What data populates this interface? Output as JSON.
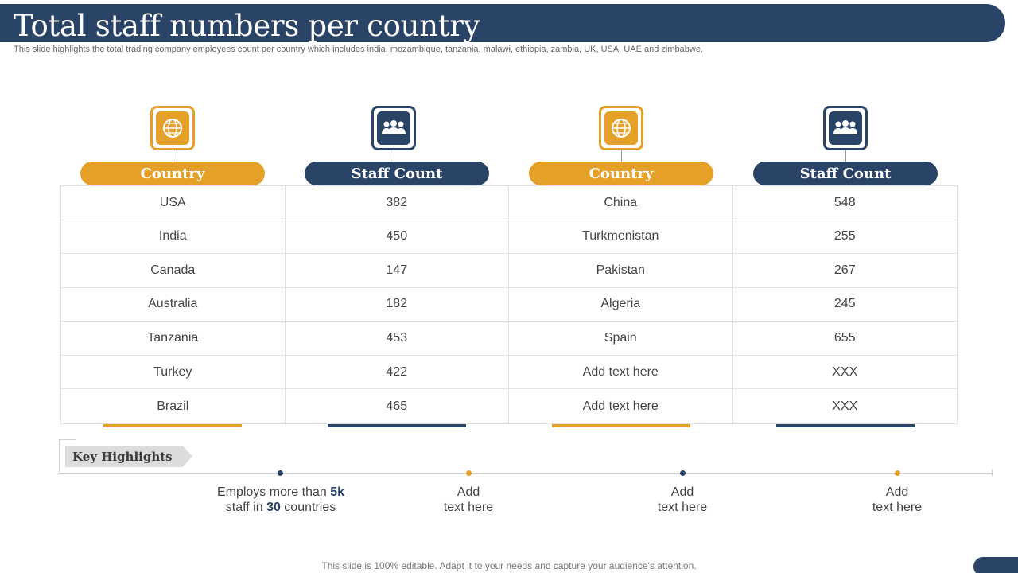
{
  "title": "Total staff numbers per country",
  "subtitle": "This slide highlights the total trading company employees count per country which includes india, mozambique, tanzania, malawi, ethiopia, zambia, UK, USA,  UAE and zimbabwe.",
  "colors": {
    "navy": "#2a4468",
    "gold": "#e4a027"
  },
  "columns": [
    {
      "header": "Country",
      "icon": "globe-icon"
    },
    {
      "header": "Staff Count",
      "icon": "team-icon"
    },
    {
      "header": "Country",
      "icon": "globe-icon"
    },
    {
      "header": "Staff Count",
      "icon": "team-icon"
    }
  ],
  "rows": [
    [
      "USA",
      "382",
      "China",
      "548"
    ],
    [
      "India",
      "450",
      "Turkmenistan",
      "255"
    ],
    [
      "Canada",
      "147",
      "Pakistan",
      "267"
    ],
    [
      "Australia",
      "182",
      "Algeria",
      "245"
    ],
    [
      "Tanzania",
      "453",
      "Spain",
      "655"
    ],
    [
      "Turkey",
      "422",
      "Add text here",
      "XXX"
    ],
    [
      "Brazil",
      "465",
      "Add text here",
      "XXX"
    ]
  ],
  "key_highlights": {
    "label": "Key Highlights",
    "items": [
      {
        "pre": "Employs more than ",
        "num1": "5k",
        "mid": "staff in ",
        "num2": "30",
        "post": " countries"
      },
      {
        "line1": "Add",
        "line2": "text here"
      },
      {
        "line1": "Add",
        "line2": "text here"
      },
      {
        "line1": "Add",
        "line2": "text here"
      }
    ]
  },
  "footer": "This slide is 100% editable. Adapt it to your needs and capture your audience's attention."
}
